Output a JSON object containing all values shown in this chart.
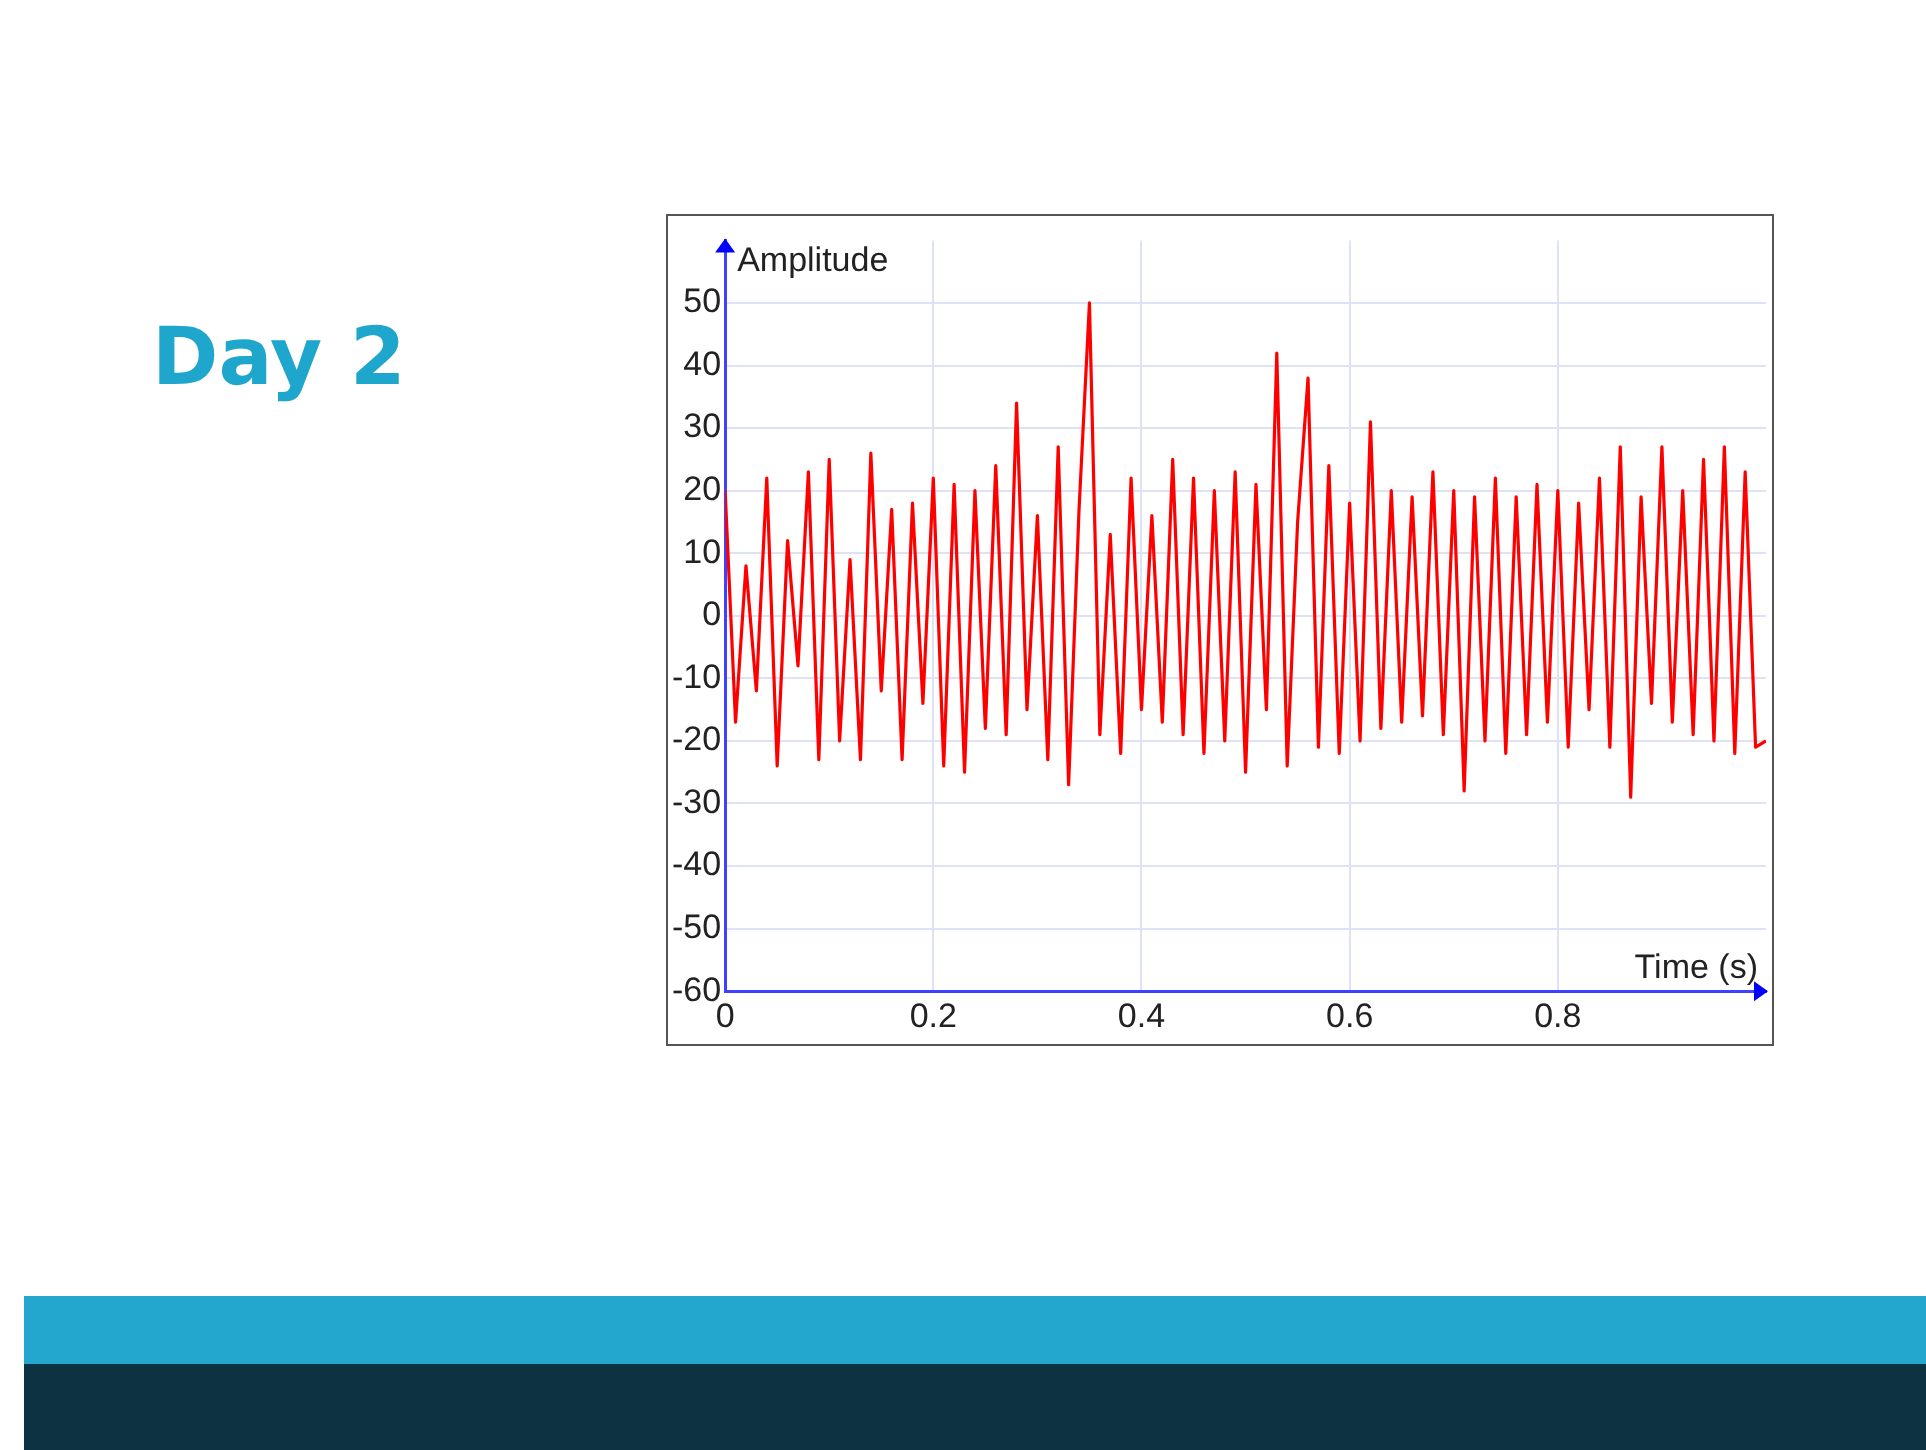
{
  "chart_data": {
    "type": "line",
    "title": "Day 2",
    "xlabel": "Time (s)",
    "ylabel": "Amplitude",
    "x": [
      0,
      0.01,
      0.02,
      0.03,
      0.04,
      0.05,
      0.06,
      0.07,
      0.08,
      0.09,
      0.1,
      0.11,
      0.12,
      0.13,
      0.14,
      0.15,
      0.16,
      0.17,
      0.18,
      0.19,
      0.2,
      0.21,
      0.22,
      0.23,
      0.24,
      0.25,
      0.26,
      0.27,
      0.28,
      0.29,
      0.3,
      0.31,
      0.32,
      0.33,
      0.34,
      0.35,
      0.36,
      0.37,
      0.38,
      0.39,
      0.4,
      0.41,
      0.42,
      0.43,
      0.44,
      0.45,
      0.46,
      0.47,
      0.48,
      0.49,
      0.5,
      0.51,
      0.52,
      0.53,
      0.54,
      0.55,
      0.56,
      0.57,
      0.58,
      0.59,
      0.6,
      0.61,
      0.62,
      0.63,
      0.64,
      0.65,
      0.66,
      0.67,
      0.68,
      0.69,
      0.7,
      0.71,
      0.72,
      0.73,
      0.74,
      0.75,
      0.76,
      0.77,
      0.78,
      0.79,
      0.8,
      0.81,
      0.82,
      0.83,
      0.84,
      0.85,
      0.86,
      0.87,
      0.88,
      0.89,
      0.9,
      0.91,
      0.92,
      0.93,
      0.94,
      0.95,
      0.96,
      0.97,
      0.98,
      0.99,
      1
    ],
    "values": [
      20,
      -17,
      8,
      -12,
      22,
      -24,
      12,
      -8,
      23,
      -23,
      25,
      -20,
      9,
      -23,
      26,
      -12,
      17,
      -23,
      18,
      -14,
      22,
      -24,
      21,
      -25,
      20,
      -18,
      24,
      -19,
      34,
      -15,
      16,
      -23,
      27,
      -27,
      17,
      50,
      -19,
      13,
      -22,
      22,
      -15,
      16,
      -17,
      25,
      -19,
      22,
      -22,
      20,
      -20,
      23,
      -25,
      21,
      -15,
      42,
      -24,
      15,
      38,
      -21,
      24,
      -22,
      18,
      -20,
      31,
      -18,
      20,
      -17,
      19,
      -16,
      23,
      -19,
      20,
      -28,
      19,
      -20,
      22,
      -22,
      19,
      -19,
      21,
      -17,
      20,
      -21,
      18,
      -15,
      22,
      -21,
      27,
      -29,
      19,
      -14,
      27,
      -17,
      20,
      -19,
      25,
      -20,
      27,
      -22,
      23,
      -21,
      -20
    ],
    "color": "#ff0000",
    "xlim": [
      0,
      1
    ],
    "ylim": [
      -60,
      60
    ],
    "xticks": [
      0,
      0.2,
      0.4,
      0.6,
      0.8
    ],
    "yticks": [
      -60,
      -50,
      -40,
      -30,
      -20,
      -10,
      0,
      10,
      20,
      30,
      40,
      50
    ],
    "grid": true
  }
}
